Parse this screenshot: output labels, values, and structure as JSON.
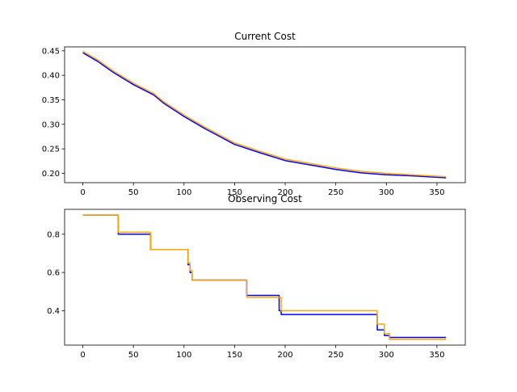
{
  "chart_data": [
    {
      "type": "line",
      "title": "Current Cost",
      "xlabel": "",
      "ylabel": "",
      "xlim": [
        -18,
        378
      ],
      "ylim": [
        0.181,
        0.458
      ],
      "xticks": [
        0,
        50,
        100,
        150,
        200,
        250,
        300,
        350
      ],
      "yticks": [
        0.2,
        0.25,
        0.3,
        0.35,
        0.4,
        0.45
      ],
      "xtick_labels": [
        "0",
        "50",
        "100",
        "150",
        "200",
        "250",
        "300",
        "350"
      ],
      "ytick_labels": [
        "0.20",
        "0.25",
        "0.30",
        "0.35",
        "0.40",
        "0.45"
      ],
      "grid": false,
      "legend": "none",
      "step": false,
      "series": [
        {
          "color": "#0000ff",
          "x": [
            0,
            15,
            30,
            50,
            70,
            80,
            100,
            120,
            150,
            175,
            200,
            225,
            250,
            275,
            300,
            325,
            359
          ],
          "values": [
            0.446,
            0.428,
            0.406,
            0.381,
            0.36,
            0.343,
            0.316,
            0.292,
            0.259,
            0.242,
            0.226,
            0.217,
            0.208,
            0.201,
            0.197,
            0.195,
            0.191
          ]
        },
        {
          "color": "#ffa500",
          "x": [
            0,
            15,
            30,
            50,
            70,
            80,
            100,
            120,
            150,
            175,
            200,
            225,
            250,
            275,
            300,
            325,
            359
          ],
          "values": [
            0.449,
            0.431,
            0.409,
            0.384,
            0.363,
            0.346,
            0.319,
            0.295,
            0.262,
            0.245,
            0.229,
            0.22,
            0.211,
            0.204,
            0.2,
            0.197,
            0.193
          ]
        }
      ]
    },
    {
      "type": "line",
      "title": "Observing Cost",
      "xlabel": "",
      "ylabel": "",
      "xlim": [
        -18,
        378
      ],
      "ylim": [
        0.22,
        0.93
      ],
      "xticks": [
        0,
        50,
        100,
        150,
        200,
        250,
        300,
        350
      ],
      "yticks": [
        0.4,
        0.6,
        0.8
      ],
      "xtick_labels": [
        "0",
        "50",
        "100",
        "150",
        "200",
        "250",
        "300",
        "350"
      ],
      "ytick_labels": [
        "0.4",
        "0.6",
        "0.8"
      ],
      "grid": false,
      "legend": "none",
      "step": true,
      "series": [
        {
          "color": "#0000ff",
          "x": [
            0,
            34,
            35,
            66,
            67,
            104,
            106,
            108,
            162,
            194,
            196,
            290,
            291,
            296,
            298,
            300,
            303,
            359
          ],
          "values": [
            0.9,
            0.9,
            0.8,
            0.8,
            0.72,
            0.64,
            0.6,
            0.56,
            0.48,
            0.4,
            0.38,
            0.38,
            0.3,
            0.3,
            0.27,
            0.27,
            0.26,
            0.26
          ]
        },
        {
          "color": "#ffa500",
          "x": [
            0,
            34,
            35,
            66,
            67,
            104,
            106,
            108,
            162,
            194,
            196,
            290,
            291,
            296,
            298,
            300,
            303,
            359
          ],
          "values": [
            0.9,
            0.9,
            0.81,
            0.81,
            0.72,
            0.65,
            0.61,
            0.56,
            0.47,
            0.47,
            0.4,
            0.4,
            0.33,
            0.33,
            0.28,
            0.28,
            0.25,
            0.25
          ]
        }
      ]
    }
  ]
}
